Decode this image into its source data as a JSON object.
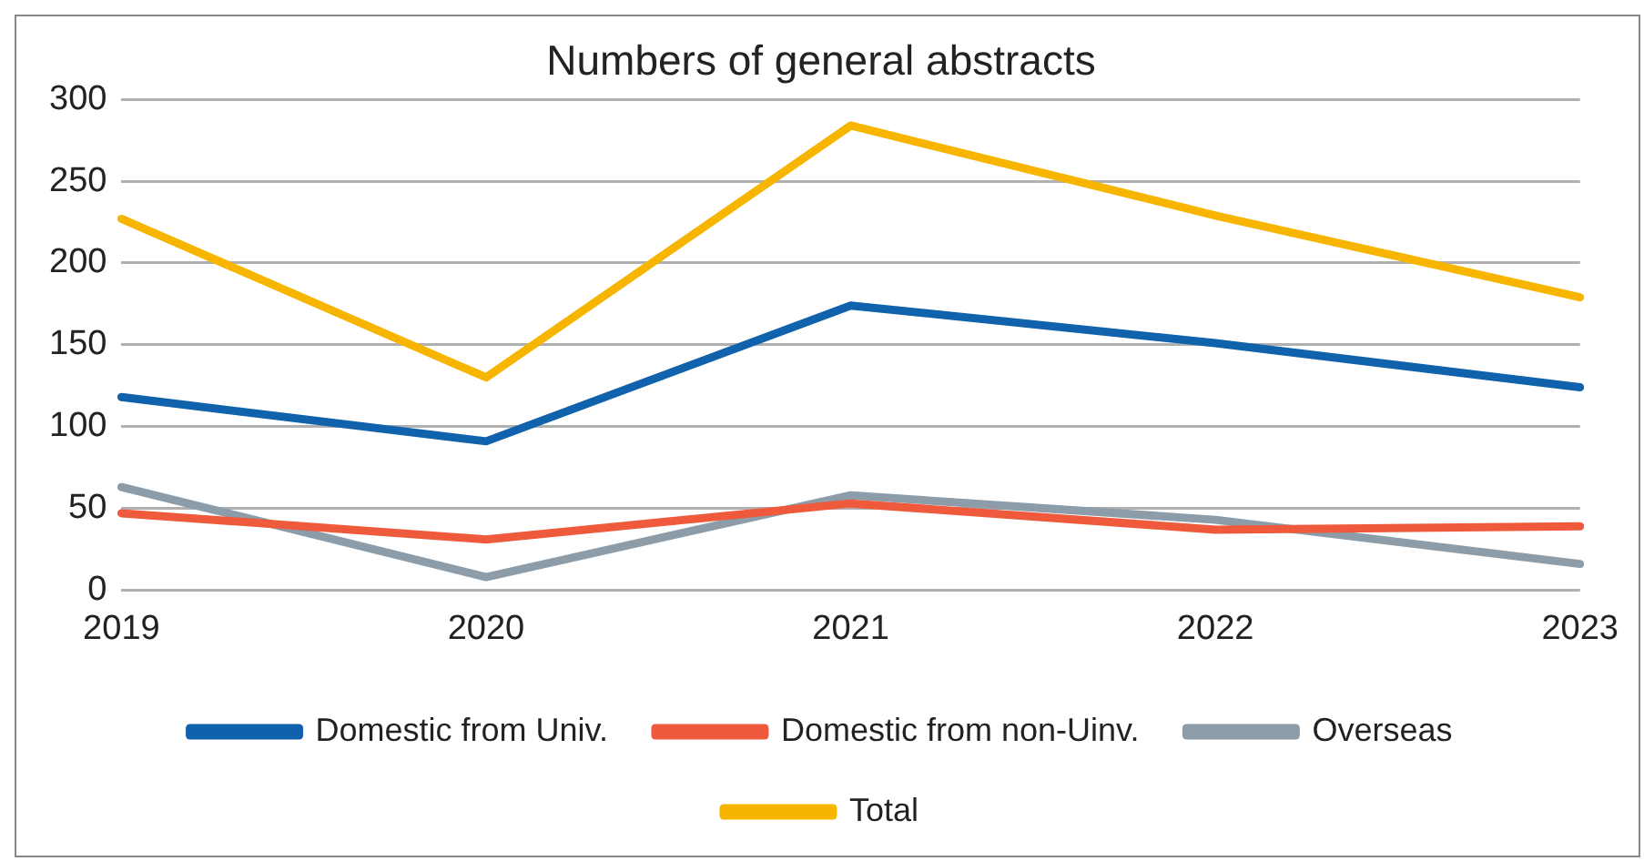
{
  "chart_data": {
    "type": "line",
    "title": "Numbers of general abstracts",
    "categories": [
      "2019",
      "2020",
      "2021",
      "2022",
      "2023"
    ],
    "series": [
      {
        "name": "Domestic from Univ.",
        "color": "#0f62ab",
        "values": [
          118,
          91,
          174,
          151,
          124
        ]
      },
      {
        "name": "Domestic from non-Uinv.",
        "color": "#ef5a3c",
        "values": [
          47,
          31,
          53,
          37,
          39
        ]
      },
      {
        "name": "Overseas",
        "color": "#8c9ca8",
        "values": [
          63,
          8,
          58,
          43,
          16
        ]
      },
      {
        "name": "Total",
        "color": "#f7b500",
        "values": [
          227,
          130,
          284,
          229,
          179
        ]
      }
    ],
    "ylim": [
      0,
      300
    ],
    "yticks": [
      0,
      50,
      100,
      150,
      200,
      250,
      300
    ],
    "grid": "y",
    "legend": "bottom",
    "marker": "none",
    "line_style": "solid"
  }
}
